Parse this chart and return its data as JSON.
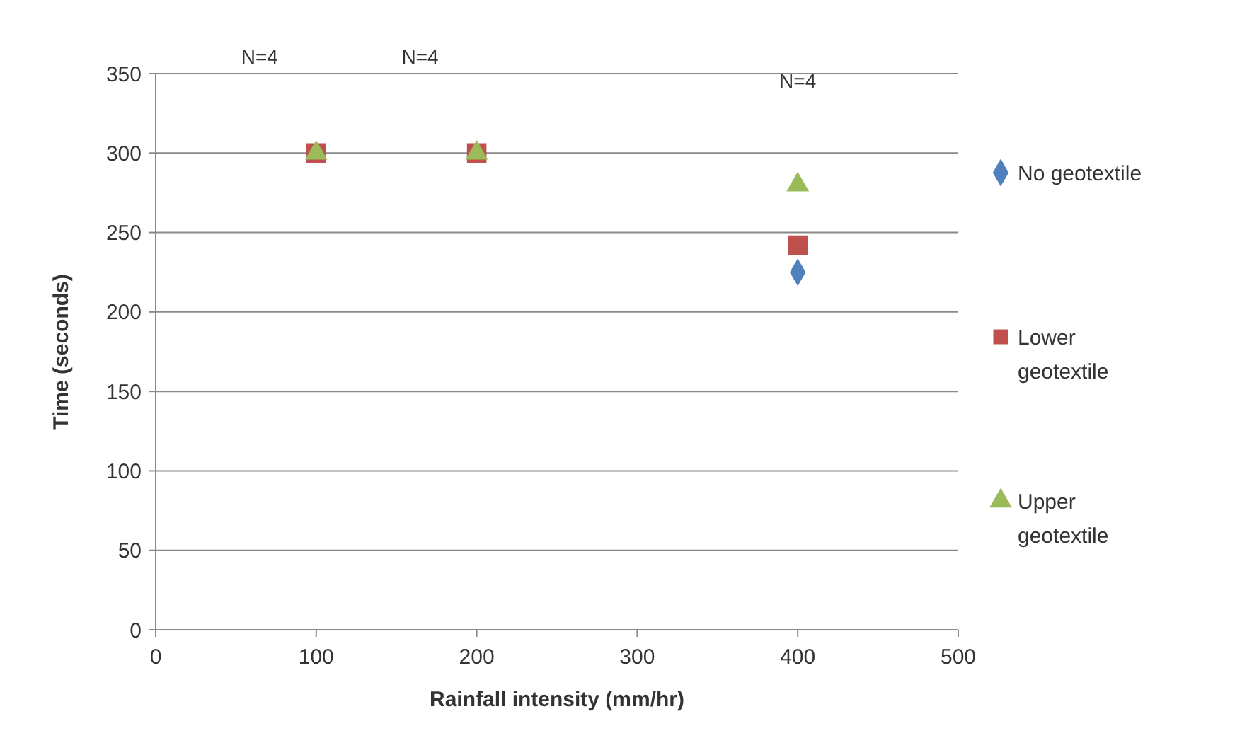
{
  "chart_data": {
    "type": "scatter",
    "xlabel": "Rainfall  intensity (mm/hr)",
    "ylabel": "Time (seconds)",
    "x": [
      100,
      200,
      400
    ],
    "series": [
      {
        "name": "No geotextile",
        "color": "#4f81bd",
        "marker": "diamond",
        "values": [
          null,
          null,
          225
        ]
      },
      {
        "name": "Lower geotextile",
        "color": "#c0504d",
        "marker": "square",
        "values": [
          300,
          300,
          242
        ]
      },
      {
        "name": "Upper geotextile",
        "color": "#9bbb59",
        "marker": "triangle",
        "values": [
          300,
          300,
          280
        ]
      }
    ],
    "xlim": [
      0,
      500
    ],
    "xticks": [
      0,
      100,
      200,
      300,
      400,
      500
    ],
    "ylim": [
      0,
      350
    ],
    "yticks": [
      0,
      50,
      100,
      150,
      200,
      250,
      300,
      350
    ],
    "grid": "y",
    "legend": "right",
    "annotations": [
      "N=4",
      "N=4",
      "N=4"
    ]
  }
}
